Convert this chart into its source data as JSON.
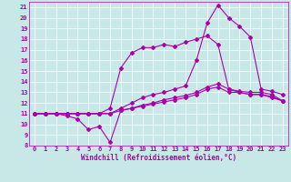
{
  "title": "",
  "xlabel": "Windchill (Refroidissement éolien,°C)",
  "bg_color": "#c8e8e8",
  "line_color": "#aa00aa",
  "grid_color": "#ffffff",
  "xlim": [
    -0.5,
    23.5
  ],
  "ylim": [
    8,
    21.5
  ],
  "xticks": [
    0,
    1,
    2,
    3,
    4,
    5,
    6,
    7,
    8,
    9,
    10,
    11,
    12,
    13,
    14,
    15,
    16,
    17,
    18,
    19,
    20,
    21,
    22,
    23
  ],
  "yticks": [
    8,
    9,
    10,
    11,
    12,
    13,
    14,
    15,
    16,
    17,
    18,
    19,
    20,
    21
  ],
  "line1_x": [
    0,
    1,
    2,
    3,
    4,
    5,
    6,
    7,
    8,
    9,
    10,
    11,
    12,
    13,
    14,
    15,
    16,
    17,
    18,
    19,
    20,
    21,
    22,
    23
  ],
  "line1_y": [
    11,
    11,
    11,
    10.8,
    10.5,
    9.5,
    9.8,
    8.3,
    11.3,
    11.5,
    11.7,
    11.9,
    12.1,
    12.3,
    12.5,
    12.8,
    13.3,
    13.5,
    13.0,
    13.0,
    12.8,
    12.8,
    12.5,
    12.2
  ],
  "line2_x": [
    0,
    1,
    2,
    3,
    4,
    5,
    6,
    7,
    8,
    9,
    10,
    11,
    12,
    13,
    14,
    15,
    16,
    17,
    18,
    19,
    20,
    21,
    22,
    23
  ],
  "line2_y": [
    11,
    11,
    11,
    11,
    11,
    11,
    11,
    11,
    11.3,
    11.5,
    11.8,
    12.0,
    12.3,
    12.5,
    12.7,
    13.0,
    13.5,
    13.8,
    13.3,
    13.0,
    12.8,
    12.8,
    12.6,
    12.2
  ],
  "line3_x": [
    0,
    1,
    2,
    3,
    4,
    5,
    6,
    7,
    8,
    9,
    10,
    11,
    12,
    13,
    14,
    15,
    16,
    17,
    18,
    19,
    20,
    21,
    22,
    23
  ],
  "line3_y": [
    11,
    11,
    11,
    11,
    11,
    11,
    11,
    11,
    11.5,
    12.0,
    12.5,
    12.8,
    13.0,
    13.3,
    13.6,
    16.0,
    19.5,
    21.2,
    20.0,
    19.2,
    18.2,
    13.3,
    13.1,
    12.8
  ],
  "line4_x": [
    0,
    1,
    2,
    3,
    4,
    5,
    6,
    7,
    8,
    9,
    10,
    11,
    12,
    13,
    14,
    15,
    16,
    17,
    18,
    19,
    20,
    21,
    22,
    23
  ],
  "line4_y": [
    11,
    11,
    11,
    11,
    11,
    11,
    11,
    11.5,
    15.3,
    16.7,
    17.2,
    17.2,
    17.5,
    17.3,
    17.7,
    18.0,
    18.3,
    17.5,
    13.3,
    13.1,
    13.0,
    13.0,
    12.8,
    12.2
  ],
  "marker": "D",
  "markersize": 2.0,
  "linewidth": 0.8,
  "tick_fontsize": 5.0,
  "xlabel_fontsize": 5.5
}
